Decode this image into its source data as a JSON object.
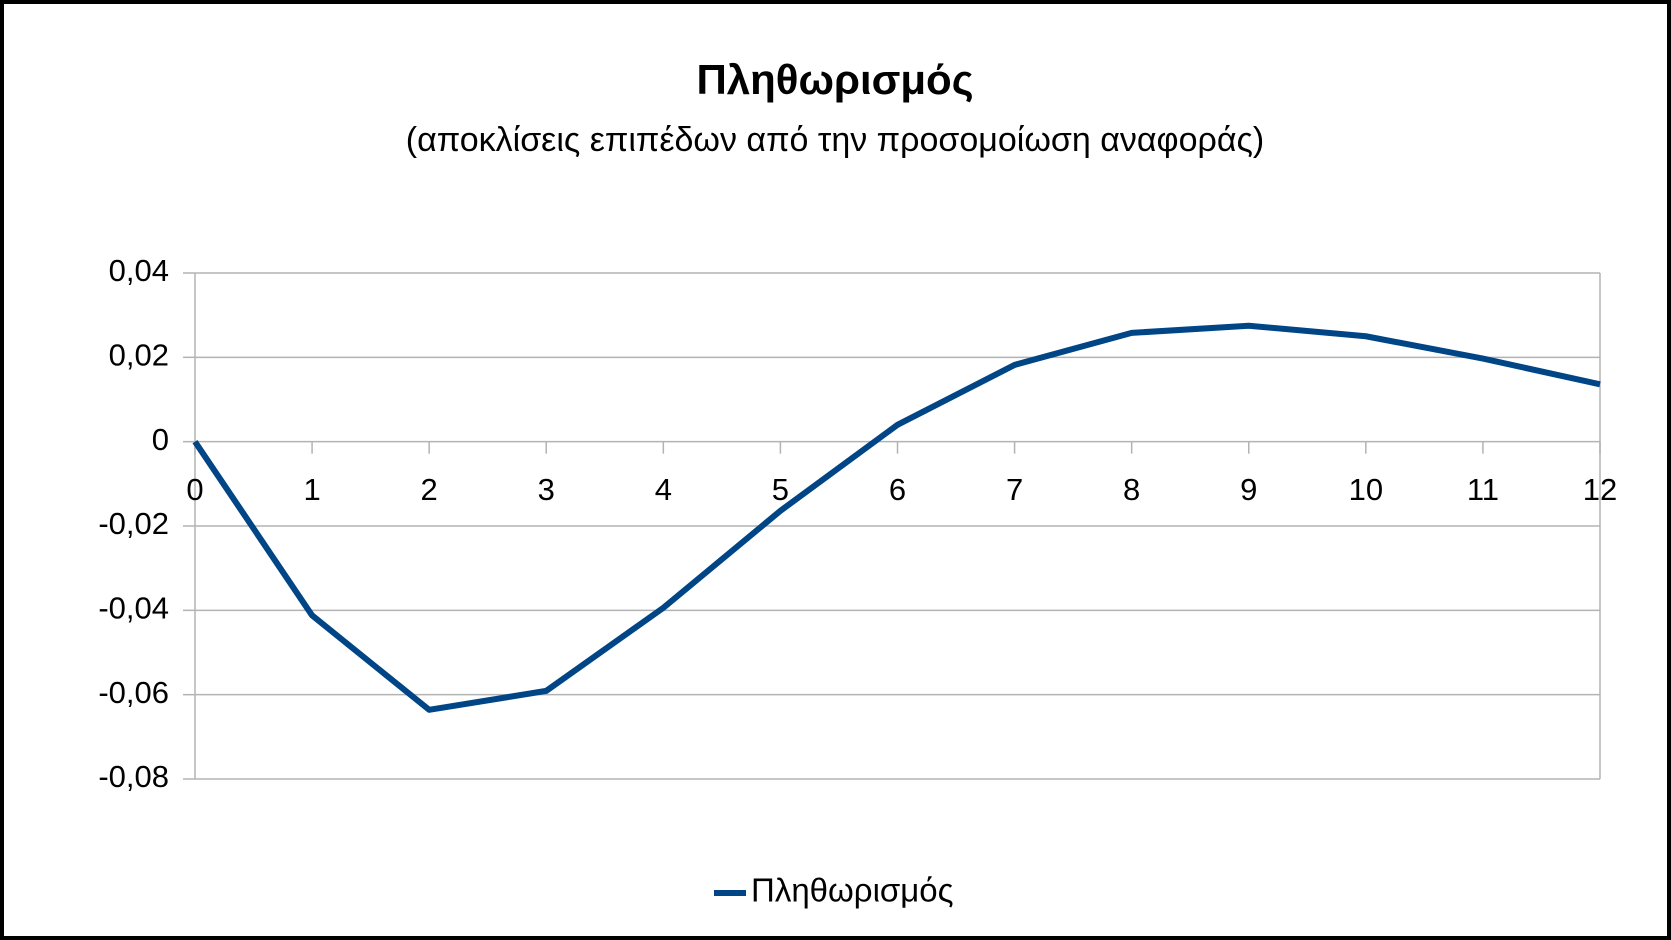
{
  "chart_data": {
    "type": "line",
    "title": "Πληθωρισμός",
    "subtitle": "(αποκλίσεις επιπέδων από την προσομοίωση αναφοράς)",
    "x": [
      0,
      1,
      2,
      3,
      4,
      5,
      6,
      7,
      8,
      9,
      10,
      11,
      12
    ],
    "series": [
      {
        "name": "Πληθωρισμός",
        "color": "#004586",
        "values": [
          0,
          -0.0412,
          -0.0636,
          -0.0591,
          -0.0394,
          -0.0164,
          0.004,
          0.0182,
          0.0258,
          0.0275,
          0.025,
          0.0197,
          0.0136
        ]
      }
    ],
    "xlim": [
      0,
      12
    ],
    "xticks": [
      0,
      1,
      2,
      3,
      4,
      5,
      6,
      7,
      8,
      9,
      10,
      11,
      12
    ],
    "ylim": [
      -0.08,
      0.04
    ],
    "yticks": [
      {
        "value": -0.08,
        "label": "-0,08"
      },
      {
        "value": -0.06,
        "label": "-0,06"
      },
      {
        "value": -0.04,
        "label": "-0,04"
      },
      {
        "value": -0.02,
        "label": "-0,02"
      },
      0,
      {
        "value": 0.02,
        "label": "0,02"
      },
      {
        "value": 0.04,
        "label": "0,04"
      }
    ],
    "grid": true,
    "legend": "bottom"
  }
}
